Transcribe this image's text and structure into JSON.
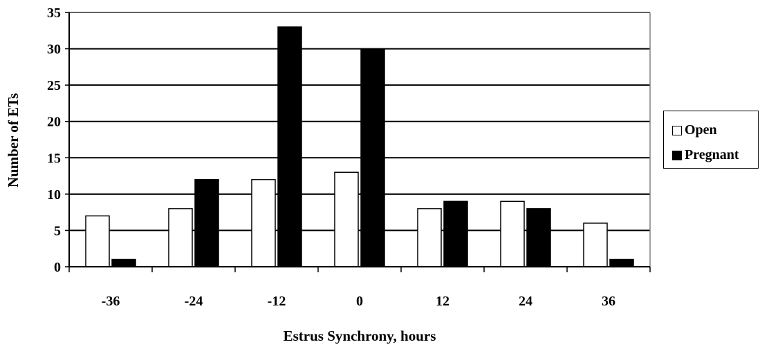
{
  "chart_data": {
    "type": "bar",
    "title": "",
    "xlabel": "Estrus Synchrony, hours",
    "ylabel": "Number of ETs",
    "categories": [
      "-36",
      "-24",
      "-12",
      "0",
      "12",
      "24",
      "36"
    ],
    "series": [
      {
        "name": "Open",
        "color": "#ffffff",
        "values": [
          7,
          8,
          12,
          13,
          8,
          9,
          6
        ]
      },
      {
        "name": "Pregnant",
        "color": "#000000",
        "values": [
          1,
          12,
          33,
          30,
          9,
          8,
          1
        ]
      }
    ],
    "ylim": [
      0,
      35
    ],
    "yticks": [
      "0",
      "5",
      "10",
      "15",
      "20",
      "25",
      "30",
      "35"
    ],
    "grid": true,
    "legend": "right"
  }
}
